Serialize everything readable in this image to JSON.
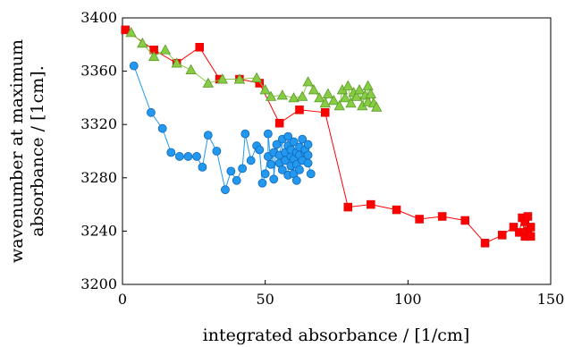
{
  "chart_data": {
    "type": "scatter",
    "xlabel": "integrated absorbance / [1/cm]",
    "ylabel_lines": [
      "wavenumber at maximum",
      "absorbance / [1cm]."
    ],
    "xlim": [
      0,
      150
    ],
    "ylim": [
      3200,
      3400
    ],
    "xticks": [
      "0",
      "50",
      "100",
      "150"
    ],
    "yticks": [
      "3200",
      "3240",
      "3280",
      "3320",
      "3360",
      "3400"
    ],
    "grid": false,
    "legend": "none",
    "series": [
      {
        "color": "#ff0000",
        "marker": "square",
        "points": [
          [
            1,
            3391
          ],
          [
            11,
            3376
          ],
          [
            19,
            3366
          ],
          [
            27,
            3378
          ],
          [
            34,
            3354
          ],
          [
            41,
            3354
          ],
          [
            48,
            3351
          ],
          [
            55,
            3321
          ],
          [
            62,
            3331
          ],
          [
            71,
            3329
          ],
          [
            79,
            3258
          ],
          [
            87,
            3260
          ],
          [
            96,
            3256
          ],
          [
            104,
            3249
          ],
          [
            112,
            3251
          ],
          [
            120,
            3248
          ],
          [
            127,
            3231
          ],
          [
            133,
            3237
          ],
          [
            137,
            3243
          ],
          [
            139,
            3239
          ],
          [
            140,
            3250
          ],
          [
            141,
            3236
          ],
          [
            141,
            3247
          ],
          [
            142,
            3251
          ],
          [
            142,
            3240
          ],
          [
            143,
            3236
          ],
          [
            143,
            3243
          ]
        ]
      },
      {
        "color": "#88cc44",
        "marker": "triangle",
        "points": [
          [
            3,
            3389
          ],
          [
            7,
            3381
          ],
          [
            11,
            3371
          ],
          [
            15,
            3376
          ],
          [
            19,
            3366
          ],
          [
            24,
            3361
          ],
          [
            30,
            3351
          ],
          [
            35,
            3354
          ],
          [
            41,
            3354
          ],
          [
            47,
            3355
          ],
          [
            50,
            3346
          ],
          [
            52,
            3341
          ],
          [
            56,
            3342
          ],
          [
            60,
            3340
          ],
          [
            63,
            3341
          ],
          [
            65,
            3352
          ],
          [
            67,
            3346
          ],
          [
            69,
            3340
          ],
          [
            71,
            3336
          ],
          [
            72,
            3343
          ],
          [
            74,
            3338
          ],
          [
            76,
            3334
          ],
          [
            77,
            3346
          ],
          [
            78,
            3340
          ],
          [
            79,
            3349
          ],
          [
            80,
            3336
          ],
          [
            81,
            3344
          ],
          [
            82,
            3341
          ],
          [
            83,
            3346
          ],
          [
            84,
            3334
          ],
          [
            85,
            3342
          ],
          [
            86,
            3337
          ],
          [
            86,
            3349
          ],
          [
            87,
            3343
          ],
          [
            88,
            3336
          ],
          [
            89,
            3333
          ]
        ]
      },
      {
        "color": "#2299ee",
        "marker": "circle",
        "points": [
          [
            4,
            3364
          ],
          [
            10,
            3329
          ],
          [
            14,
            3317
          ],
          [
            17,
            3299
          ],
          [
            20,
            3296
          ],
          [
            23,
            3296
          ],
          [
            26,
            3296
          ],
          [
            28,
            3288
          ],
          [
            30,
            3312
          ],
          [
            33,
            3300
          ],
          [
            36,
            3271
          ],
          [
            38,
            3285
          ],
          [
            40,
            3278
          ],
          [
            42,
            3287
          ],
          [
            43,
            3313
          ],
          [
            45,
            3293
          ],
          [
            47,
            3304
          ],
          [
            48,
            3301
          ],
          [
            49,
            3276
          ],
          [
            50,
            3283
          ],
          [
            51,
            3296
          ],
          [
            51,
            3313
          ],
          [
            52,
            3290
          ],
          [
            53,
            3299
          ],
          [
            53,
            3279
          ],
          [
            54,
            3305
          ],
          [
            55,
            3291
          ],
          [
            55,
            3297
          ],
          [
            56,
            3309
          ],
          [
            56,
            3286
          ],
          [
            57,
            3299
          ],
          [
            57,
            3293
          ],
          [
            58,
            3304
          ],
          [
            58,
            3282
          ],
          [
            58,
            3311
          ],
          [
            59,
            3296
          ],
          [
            59,
            3289
          ],
          [
            59,
            3301
          ],
          [
            60,
            3283
          ],
          [
            60,
            3307
          ],
          [
            60,
            3294
          ],
          [
            61,
            3299
          ],
          [
            61,
            3278
          ],
          [
            61,
            3290
          ],
          [
            62,
            3303
          ],
          [
            62,
            3286
          ],
          [
            62,
            3297
          ],
          [
            63,
            3309
          ],
          [
            63,
            3293
          ],
          [
            64,
            3299
          ],
          [
            64,
            3301
          ],
          [
            65,
            3305
          ],
          [
            65,
            3297
          ],
          [
            65,
            3291
          ],
          [
            66,
            3283
          ]
        ]
      }
    ]
  }
}
